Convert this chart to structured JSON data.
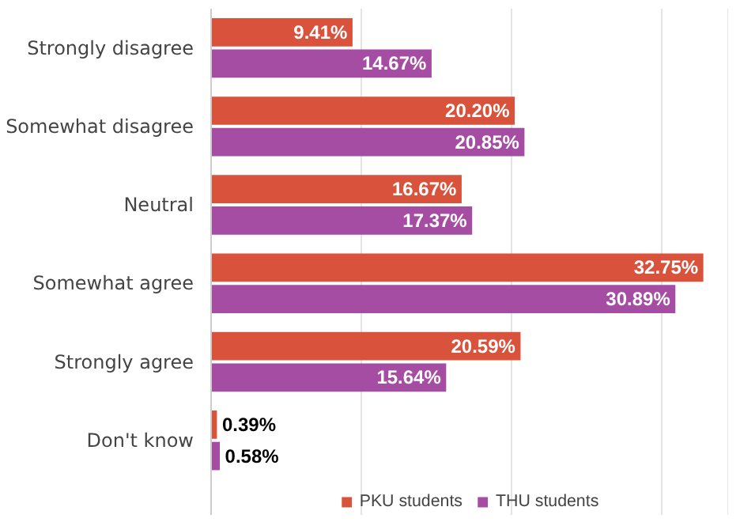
{
  "chart_data": {
    "type": "bar",
    "orientation": "horizontal",
    "categories": [
      "Strongly disagree",
      "Somewhat disagree",
      "Neutral",
      "Somewhat agree",
      "Strongly agree",
      "Don't know"
    ],
    "series": [
      {
        "name": "PKU students",
        "color": "#d9533c",
        "values": [
          9.41,
          20.2,
          16.67,
          32.75,
          20.59,
          0.39
        ],
        "value_labels": [
          "9.41%",
          "20.20%",
          "16.67%",
          "32.75%",
          "20.59%",
          "0.39%"
        ]
      },
      {
        "name": "THU students",
        "color": "#a54ca3",
        "values": [
          14.67,
          20.85,
          17.37,
          30.89,
          15.64,
          0.58
        ],
        "value_labels": [
          "14.67%",
          "20.85%",
          "17.37%",
          "30.89%",
          "15.64%",
          "0.58%"
        ]
      }
    ],
    "xlim": [
      0,
      34.4
    ],
    "xticks": [
      {
        "value": 0,
        "label": null
      },
      {
        "value": 10,
        "label": null
      },
      {
        "value": 20,
        "label": null
      },
      {
        "value": 30,
        "label": null
      }
    ],
    "grid": "x",
    "legend": "bottom",
    "tick_labels": "y"
  }
}
